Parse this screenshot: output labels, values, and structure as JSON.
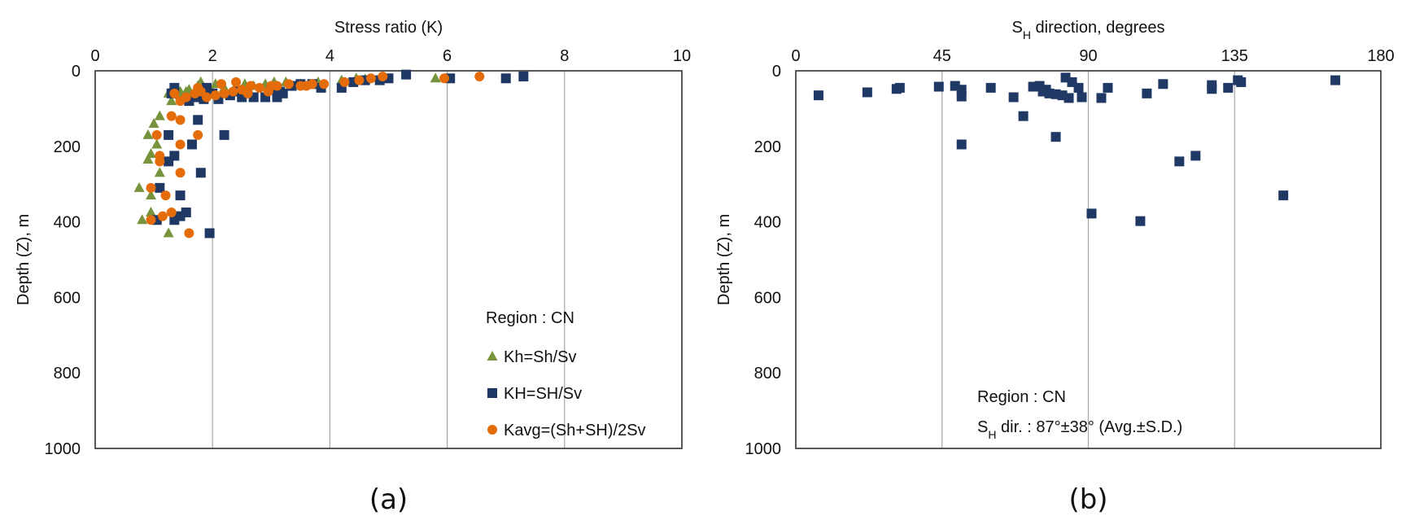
{
  "colors": {
    "kh": "#77933c",
    "kH": "#1f3864",
    "kavg": "#e46c0a",
    "grid": "#a6a6a6",
    "axis": "#222222"
  },
  "chart_data": [
    {
      "panel_label": "(a)",
      "type": "scatter",
      "xlabel": "Stress ratio (K)",
      "ylabel": "Depth (Z), m",
      "xlim": [
        0,
        10
      ],
      "ylim": [
        0,
        1000
      ],
      "y_inverted": true,
      "x_axis_position": "top",
      "xticks": [
        "0",
        "2",
        "4",
        "6",
        "8",
        "10"
      ],
      "yticks": [
        "0",
        "200",
        "400",
        "600",
        "800",
        "1000"
      ],
      "grid": "vertical",
      "legend_title": "Region : CN",
      "legend_position": "bottom-right",
      "series": [
        {
          "name": "Kh=Sh/Sv",
          "marker": "triangle",
          "color_key": "kh",
          "points": [
            [
              1.25,
              60
            ],
            [
              1.3,
              80
            ],
            [
              1.45,
              65
            ],
            [
              1.55,
              55
            ],
            [
              1.6,
              50
            ],
            [
              1.75,
              40
            ],
            [
              1.8,
              30
            ],
            [
              2.05,
              35
            ],
            [
              2.2,
              45
            ],
            [
              2.4,
              40
            ],
            [
              2.55,
              35
            ],
            [
              2.7,
              40
            ],
            [
              2.9,
              35
            ],
            [
              3.05,
              30
            ],
            [
              3.25,
              30
            ],
            [
              3.5,
              35
            ],
            [
              3.8,
              30
            ],
            [
              4.2,
              25
            ],
            [
              4.45,
              20
            ],
            [
              4.6,
              22
            ],
            [
              5.8,
              20
            ],
            [
              1.1,
              120
            ],
            [
              1.0,
              140
            ],
            [
              0.9,
              170
            ],
            [
              1.05,
              195
            ],
            [
              0.95,
              220
            ],
            [
              0.9,
              235
            ],
            [
              1.1,
              270
            ],
            [
              0.75,
              310
            ],
            [
              0.95,
              330
            ],
            [
              0.95,
              375
            ],
            [
              0.8,
              395
            ],
            [
              1.25,
              430
            ],
            [
              1.45,
              55
            ],
            [
              1.7,
              60
            ],
            [
              2.0,
              55
            ],
            [
              2.3,
              60
            ],
            [
              2.6,
              45
            ]
          ]
        },
        {
          "name": "KH=SH/Sv",
          "marker": "square",
          "color_key": "kH",
          "points": [
            [
              1.3,
              60
            ],
            [
              1.6,
              80
            ],
            [
              1.75,
              70
            ],
            [
              1.85,
              75
            ],
            [
              2.0,
              60
            ],
            [
              2.1,
              75
            ],
            [
              2.3,
              65
            ],
            [
              2.5,
              70
            ],
            [
              2.7,
              70
            ],
            [
              2.9,
              70
            ],
            [
              3.0,
              50
            ],
            [
              3.1,
              70
            ],
            [
              3.2,
              60
            ],
            [
              3.35,
              40
            ],
            [
              3.5,
              35
            ],
            [
              3.7,
              35
            ],
            [
              3.85,
              45
            ],
            [
              4.2,
              45
            ],
            [
              4.4,
              30
            ],
            [
              4.6,
              25
            ],
            [
              5.0,
              20
            ],
            [
              5.3,
              10
            ],
            [
              6.05,
              20
            ],
            [
              7.0,
              20
            ],
            [
              7.3,
              15
            ],
            [
              1.75,
              130
            ],
            [
              2.2,
              170
            ],
            [
              1.25,
              170
            ],
            [
              1.65,
              195
            ],
            [
              1.35,
              225
            ],
            [
              1.25,
              240
            ],
            [
              1.8,
              270
            ],
            [
              1.1,
              310
            ],
            [
              1.45,
              330
            ],
            [
              1.55,
              375
            ],
            [
              1.45,
              385
            ],
            [
              1.35,
              395
            ],
            [
              1.05,
              395
            ],
            [
              1.95,
              430
            ],
            [
              1.35,
              45
            ],
            [
              1.9,
              45
            ],
            [
              2.45,
              55
            ],
            [
              3.15,
              55
            ],
            [
              4.85,
              25
            ]
          ]
        },
        {
          "name": "Kavg=(Sh+SH)/2Sv",
          "marker": "circle",
          "color_key": "kavg",
          "points": [
            [
              1.35,
              60
            ],
            [
              1.45,
              80
            ],
            [
              1.55,
              70
            ],
            [
              1.7,
              60
            ],
            [
              1.8,
              55
            ],
            [
              1.9,
              70
            ],
            [
              2.05,
              65
            ],
            [
              2.2,
              60
            ],
            [
              2.35,
              55
            ],
            [
              2.5,
              50
            ],
            [
              2.65,
              40
            ],
            [
              2.8,
              45
            ],
            [
              2.95,
              55
            ],
            [
              3.1,
              40
            ],
            [
              3.3,
              35
            ],
            [
              3.5,
              40
            ],
            [
              3.7,
              35
            ],
            [
              3.9,
              35
            ],
            [
              4.25,
              30
            ],
            [
              4.5,
              25
            ],
            [
              4.7,
              20
            ],
            [
              4.9,
              15
            ],
            [
              5.95,
              20
            ],
            [
              6.55,
              15
            ],
            [
              1.3,
              120
            ],
            [
              1.45,
              130
            ],
            [
              1.75,
              170
            ],
            [
              1.05,
              170
            ],
            [
              1.45,
              195
            ],
            [
              1.1,
              225
            ],
            [
              1.1,
              240
            ],
            [
              1.45,
              270
            ],
            [
              0.95,
              310
            ],
            [
              1.2,
              330
            ],
            [
              1.3,
              375
            ],
            [
              1.15,
              385
            ],
            [
              0.95,
              395
            ],
            [
              1.6,
              430
            ],
            [
              1.75,
              45
            ],
            [
              2.15,
              35
            ],
            [
              2.4,
              30
            ],
            [
              2.6,
              60
            ],
            [
              3.0,
              40
            ],
            [
              3.6,
              40
            ]
          ]
        }
      ]
    },
    {
      "panel_label": "(b)",
      "type": "scatter",
      "xlabel_main": "S",
      "xlabel_sub": "H",
      "xlabel_rest": " direction, degrees",
      "ylabel": "Depth (Z), m",
      "xlim": [
        0,
        180
      ],
      "ylim": [
        0,
        1000
      ],
      "y_inverted": true,
      "x_axis_position": "top",
      "xticks": [
        "0",
        "45",
        "90",
        "135",
        "180"
      ],
      "yticks": [
        "0",
        "200",
        "400",
        "600",
        "800",
        "1000"
      ],
      "grid": "vertical",
      "annotation_line1": "Region : CN",
      "annotation_line2_main": "S",
      "annotation_line2_sub": "H",
      "annotation_line2_rest": " dir.  : 87°±38° (Avg.±S.D.)",
      "series": [
        {
          "marker": "square",
          "color_key": "kH",
          "points": [
            [
              7,
              65
            ],
            [
              22,
              57
            ],
            [
              31,
              48
            ],
            [
              32,
              45
            ],
            [
              44,
              42
            ],
            [
              49,
              40
            ],
            [
              51,
              50
            ],
            [
              51,
              68
            ],
            [
              51,
              195
            ],
            [
              60,
              45
            ],
            [
              67,
              70
            ],
            [
              70,
              120
            ],
            [
              73,
              42
            ],
            [
              75,
              40
            ],
            [
              76,
              55
            ],
            [
              77,
              50
            ],
            [
              78,
              60
            ],
            [
              80,
              62
            ],
            [
              80,
              175
            ],
            [
              82,
              65
            ],
            [
              83,
              18
            ],
            [
              84,
              72
            ],
            [
              85,
              30
            ],
            [
              87,
              45
            ],
            [
              88,
              70
            ],
            [
              91,
              378
            ],
            [
              94,
              72
            ],
            [
              96,
              45
            ],
            [
              106,
              398
            ],
            [
              108,
              60
            ],
            [
              113,
              35
            ],
            [
              118,
              240
            ],
            [
              123,
              225
            ],
            [
              128,
              38
            ],
            [
              128,
              48
            ],
            [
              133,
              45
            ],
            [
              136,
              25
            ],
            [
              137,
              30
            ],
            [
              150,
              330
            ],
            [
              166,
              25
            ]
          ]
        }
      ]
    }
  ]
}
